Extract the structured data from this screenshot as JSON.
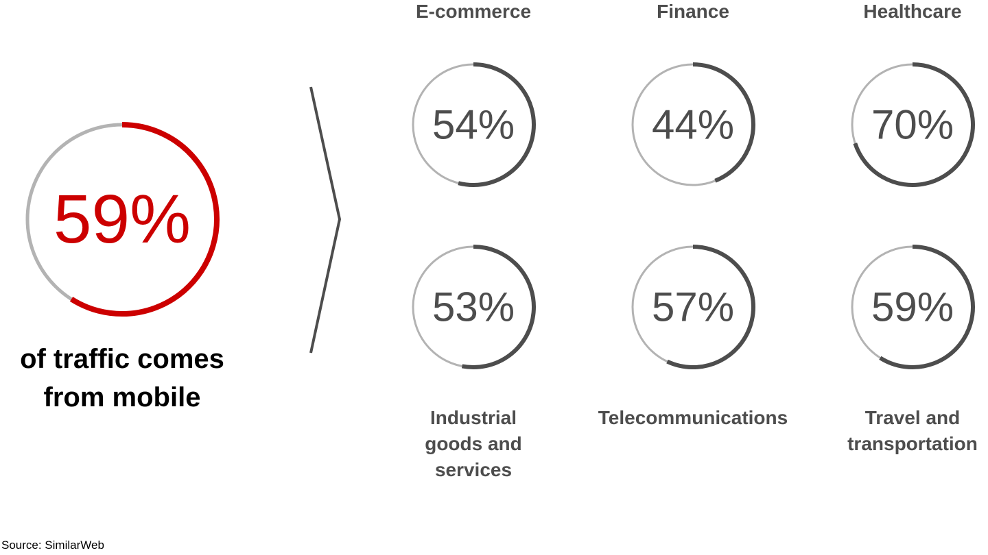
{
  "chart_data": [
    {
      "type": "ring",
      "caption": "of traffic comes from mobile",
      "values": [
        59
      ],
      "value_labels": [
        "59%"
      ],
      "color": "#cc0000",
      "track_color": "#b3b3b3"
    },
    {
      "type": "ring",
      "title": "E-commerce",
      "values": [
        54
      ],
      "value_labels": [
        "54%"
      ],
      "color": "#4d4d4d",
      "track_color": "#b3b3b3"
    },
    {
      "type": "ring",
      "title": "Finance",
      "values": [
        44
      ],
      "value_labels": [
        "44%"
      ],
      "color": "#4d4d4d",
      "track_color": "#b3b3b3"
    },
    {
      "type": "ring",
      "title": "Healthcare",
      "values": [
        70
      ],
      "value_labels": [
        "70%"
      ],
      "color": "#4d4d4d",
      "track_color": "#b3b3b3"
    },
    {
      "type": "ring",
      "title": "Industrial goods and services",
      "values": [
        53
      ],
      "value_labels": [
        "53%"
      ],
      "color": "#4d4d4d",
      "track_color": "#b3b3b3"
    },
    {
      "type": "ring",
      "title": "Telecommunications",
      "values": [
        57
      ],
      "value_labels": [
        "57%"
      ],
      "color": "#4d4d4d",
      "track_color": "#b3b3b3"
    },
    {
      "type": "ring",
      "title": "Travel and transportation",
      "values": [
        59
      ],
      "value_labels": [
        "59%"
      ],
      "color": "#4d4d4d",
      "track_color": "#b3b3b3"
    }
  ],
  "source": "Source: SimilarWeb"
}
